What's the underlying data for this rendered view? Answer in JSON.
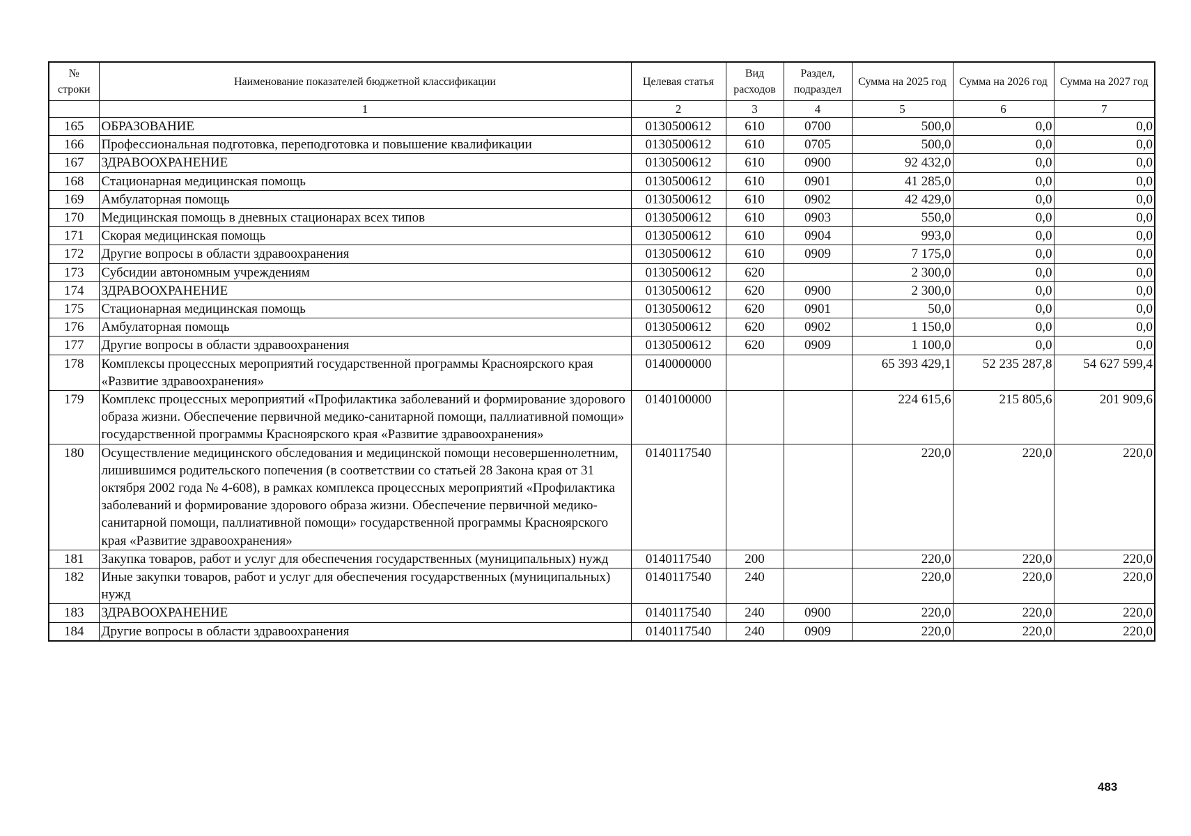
{
  "table": {
    "headers": [
      "№ строки",
      "Наименование показателей бюджетной классификации",
      "Целевая статья",
      "Вид расходов",
      "Раздел, подраздел",
      "Сумма на 2025 год",
      "Сумма на 2026 год",
      "Сумма на 2027 год"
    ],
    "index_row": [
      "",
      "1",
      "2",
      "3",
      "4",
      "5",
      "6",
      "7"
    ],
    "rows": [
      [
        "165",
        "ОБРАЗОВАНИЕ",
        "0130500612",
        "610",
        "0700",
        "500,0",
        "0,0",
        "0,0"
      ],
      [
        "166",
        "Профессиональная подготовка, переподготовка и повышение квалификации",
        "0130500612",
        "610",
        "0705",
        "500,0",
        "0,0",
        "0,0"
      ],
      [
        "167",
        "ЗДРАВООХРАНЕНИЕ",
        "0130500612",
        "610",
        "0900",
        "92 432,0",
        "0,0",
        "0,0"
      ],
      [
        "168",
        "Стационарная медицинская помощь",
        "0130500612",
        "610",
        "0901",
        "41 285,0",
        "0,0",
        "0,0"
      ],
      [
        "169",
        "Амбулаторная помощь",
        "0130500612",
        "610",
        "0902",
        "42 429,0",
        "0,0",
        "0,0"
      ],
      [
        "170",
        "Медицинская помощь в дневных стационарах всех типов",
        "0130500612",
        "610",
        "0903",
        "550,0",
        "0,0",
        "0,0"
      ],
      [
        "171",
        "Скорая медицинская помощь",
        "0130500612",
        "610",
        "0904",
        "993,0",
        "0,0",
        "0,0"
      ],
      [
        "172",
        "Другие вопросы в области здравоохранения",
        "0130500612",
        "610",
        "0909",
        "7 175,0",
        "0,0",
        "0,0"
      ],
      [
        "173",
        "Субсидии автономным учреждениям",
        "0130500612",
        "620",
        "",
        "2 300,0",
        "0,0",
        "0,0"
      ],
      [
        "174",
        "ЗДРАВООХРАНЕНИЕ",
        "0130500612",
        "620",
        "0900",
        "2 300,0",
        "0,0",
        "0,0"
      ],
      [
        "175",
        "Стационарная медицинская помощь",
        "0130500612",
        "620",
        "0901",
        "50,0",
        "0,0",
        "0,0"
      ],
      [
        "176",
        "Амбулаторная помощь",
        "0130500612",
        "620",
        "0902",
        "1 150,0",
        "0,0",
        "0,0"
      ],
      [
        "177",
        "Другие вопросы в области здравоохранения",
        "0130500612",
        "620",
        "0909",
        "1 100,0",
        "0,0",
        "0,0"
      ],
      [
        "178",
        "Комплексы процессных мероприятий государственной программы Красноярского края «Развитие здравоохранения»",
        "0140000000",
        "",
        "",
        "65 393 429,1",
        "52 235 287,8",
        "54 627 599,4"
      ],
      [
        "179",
        "Комплекс процессных мероприятий «Профилактика заболеваний и формирование здорового образа жизни. Обеспечение первичной медико-санитарной помощи, паллиативной помощи» государственной программы Красноярского края «Развитие здравоохранения»",
        "0140100000",
        "",
        "",
        "224 615,6",
        "215 805,6",
        "201 909,6"
      ],
      [
        "180",
        "Осуществление медицинского обследования и медицинской помощи несовершеннолетним, лишившимся родительского попечения (в соответствии со статьей 28 Закона края от 31 октября 2002 года № 4-608), в рамках комплекса процессных мероприятий «Профилактика заболеваний и формирование здорового образа жизни. Обеспечение первичной медико-санитарной помощи, паллиативной помощи» государственной программы Красноярского края «Развитие здравоохранения»",
        "0140117540",
        "",
        "",
        "220,0",
        "220,0",
        "220,0"
      ],
      [
        "181",
        "Закупка товаров, работ и услуг для обеспечения государственных (муниципальных) нужд",
        "0140117540",
        "200",
        "",
        "220,0",
        "220,0",
        "220,0"
      ],
      [
        "182",
        "Иные закупки товаров, работ и услуг для обеспечения государственных (муниципальных) нужд",
        "0140117540",
        "240",
        "",
        "220,0",
        "220,0",
        "220,0"
      ],
      [
        "183",
        "ЗДРАВООХРАНЕНИЕ",
        "0140117540",
        "240",
        "0900",
        "220,0",
        "220,0",
        "220,0"
      ],
      [
        "184",
        "Другие вопросы в области здравоохранения",
        "0140117540",
        "240",
        "0909",
        "220,0",
        "220,0",
        "220,0"
      ]
    ]
  },
  "page_number": "483"
}
